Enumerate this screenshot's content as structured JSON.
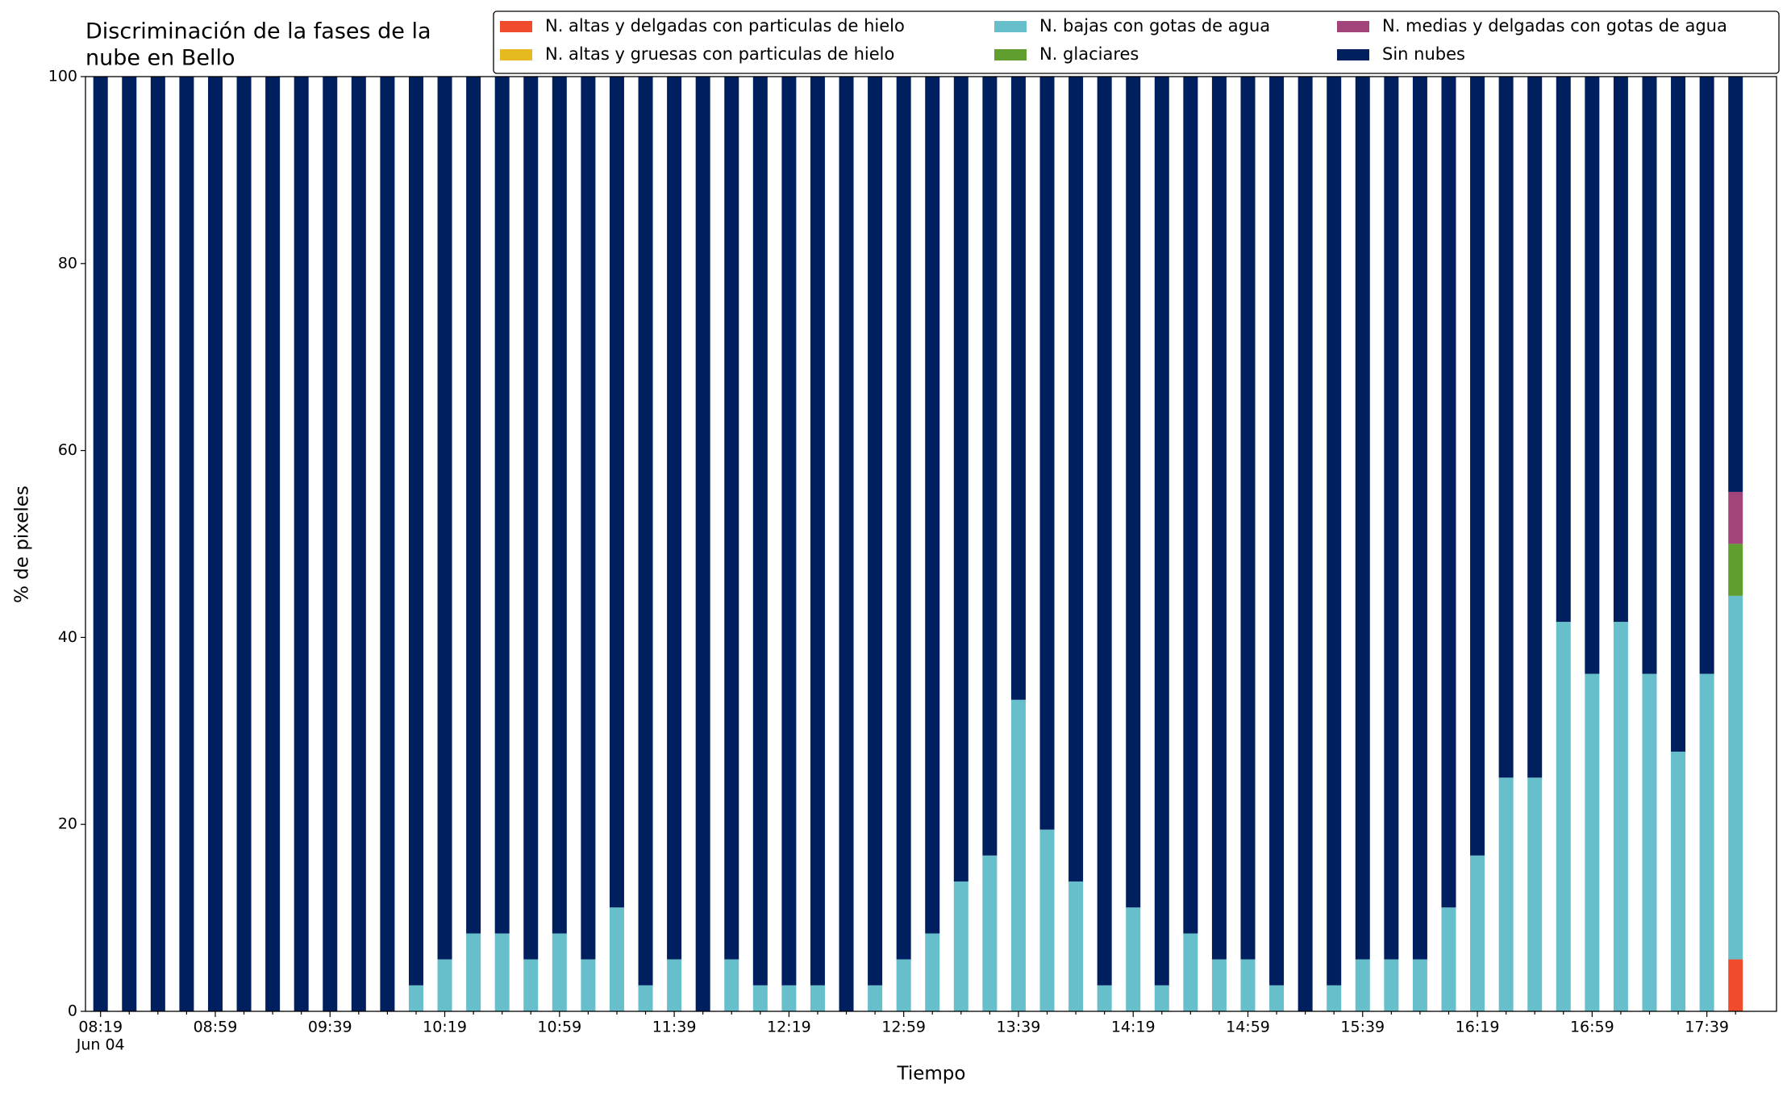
{
  "chart_data": {
    "type": "stacked_bar",
    "title": [
      "Discriminación de la fases de la",
      "nube en Bello"
    ],
    "xlabel": "Tiempo",
    "ylabel": "% de pixeles",
    "x_sublabel": "Jun 04",
    "categories": [
      "08:19",
      null,
      null,
      null,
      "08:59",
      null,
      null,
      null,
      "09:39",
      null,
      null,
      null,
      "10:19",
      null,
      null,
      null,
      "10:59",
      null,
      null,
      null,
      "11:39",
      null,
      null,
      null,
      "12:19",
      null,
      null,
      null,
      "12:59",
      null,
      null,
      null,
      "13:39",
      null,
      null,
      null,
      "14:19",
      null,
      null,
      null,
      "14:59",
      null,
      null,
      null,
      "15:39",
      null,
      null,
      null,
      "16:19",
      null,
      null,
      null,
      "16:59",
      null,
      null,
      null,
      "17:39",
      null
    ],
    "ylim": [
      0,
      100
    ],
    "yticks": [
      0,
      20,
      40,
      60,
      80,
      100
    ],
    "legend": "top-right",
    "series": [
      {
        "name": "N. altas y delgadas con particulas de hielo",
        "color": "#ef4b2c",
        "values": [
          0,
          0,
          0,
          0,
          0,
          0,
          0,
          0,
          0,
          0,
          0,
          0,
          0,
          0,
          0,
          0,
          0,
          0,
          0,
          0,
          0,
          0,
          0,
          0,
          0,
          0,
          0,
          0,
          0,
          0,
          0,
          0,
          0,
          0,
          0,
          0,
          0,
          0,
          0,
          0,
          0,
          0,
          0,
          0,
          0,
          0,
          0,
          0,
          0,
          0,
          0,
          0,
          0,
          0,
          0,
          0,
          0,
          5.56
        ]
      },
      {
        "name": "N. altas y gruesas con particulas de hielo",
        "color": "#e5b91f",
        "values": [
          0,
          0,
          0,
          0,
          0,
          0,
          0,
          0,
          0,
          0,
          0,
          0,
          0,
          0,
          0,
          0,
          0,
          0,
          0,
          0,
          0,
          0,
          0,
          0,
          0,
          0,
          0,
          0,
          0,
          0,
          0,
          0,
          0,
          0,
          0,
          0,
          0,
          0,
          0,
          0,
          0,
          0,
          0,
          0,
          0,
          0,
          0,
          0,
          0,
          0,
          0,
          0,
          0,
          0,
          0,
          0,
          0,
          0
        ]
      },
      {
        "name": "N. bajas con gotas de agua",
        "color": "#67bfcb",
        "values": [
          0,
          0,
          0,
          0,
          0,
          0,
          0,
          0,
          0,
          0,
          0,
          2.78,
          5.56,
          8.33,
          8.33,
          5.56,
          8.33,
          5.56,
          11.11,
          2.78,
          5.56,
          0,
          5.56,
          2.78,
          2.78,
          2.78,
          0,
          2.78,
          5.56,
          8.33,
          13.89,
          16.67,
          33.33,
          19.44,
          13.89,
          2.78,
          11.11,
          2.78,
          8.33,
          5.56,
          5.56,
          2.78,
          0,
          2.78,
          5.56,
          5.56,
          5.56,
          11.11,
          16.67,
          25,
          25,
          41.67,
          36.11,
          41.67,
          36.11,
          27.78,
          36.11,
          38.89
        ]
      },
      {
        "name": "N. glaciares",
        "color": "#5f9e2f",
        "values": [
          0,
          0,
          0,
          0,
          0,
          0,
          0,
          0,
          0,
          0,
          0,
          0,
          0,
          0,
          0,
          0,
          0,
          0,
          0,
          0,
          0,
          0,
          0,
          0,
          0,
          0,
          0,
          0,
          0,
          0,
          0,
          0,
          0,
          0,
          0,
          0,
          0,
          0,
          0,
          0,
          0,
          0,
          0,
          0,
          0,
          0,
          0,
          0,
          0,
          0,
          0,
          0,
          0,
          0,
          0,
          0,
          0,
          5.56
        ]
      },
      {
        "name": "N. medias y delgadas con gotas de agua",
        "color": "#a2457a",
        "values": [
          0,
          0,
          0,
          0,
          0,
          0,
          0,
          0,
          0,
          0,
          0,
          0,
          0,
          0,
          0,
          0,
          0,
          0,
          0,
          0,
          0,
          0,
          0,
          0,
          0,
          0,
          0,
          0,
          0,
          0,
          0,
          0,
          0,
          0,
          0,
          0,
          0,
          0,
          0,
          0,
          0,
          0,
          0,
          0,
          0,
          0,
          0,
          0,
          0,
          0,
          0,
          0,
          0,
          0,
          0,
          0,
          0,
          5.56
        ]
      },
      {
        "name": "Sin nubes",
        "color": "#001f5f",
        "values": [
          100,
          100,
          100,
          100,
          100,
          100,
          100,
          100,
          100,
          100,
          100,
          97.22,
          94.44,
          91.67,
          91.67,
          94.44,
          91.67,
          94.44,
          88.89,
          97.22,
          94.44,
          100,
          94.44,
          97.22,
          97.22,
          97.22,
          100,
          97.22,
          94.44,
          91.67,
          86.11,
          83.33,
          66.67,
          80.56,
          86.11,
          97.22,
          88.89,
          97.22,
          91.67,
          94.44,
          94.44,
          97.22,
          100,
          97.22,
          94.44,
          94.44,
          94.44,
          88.89,
          83.33,
          75,
          75,
          58.33,
          63.89,
          58.33,
          63.89,
          72.22,
          63.89,
          44.44
        ]
      }
    ]
  }
}
